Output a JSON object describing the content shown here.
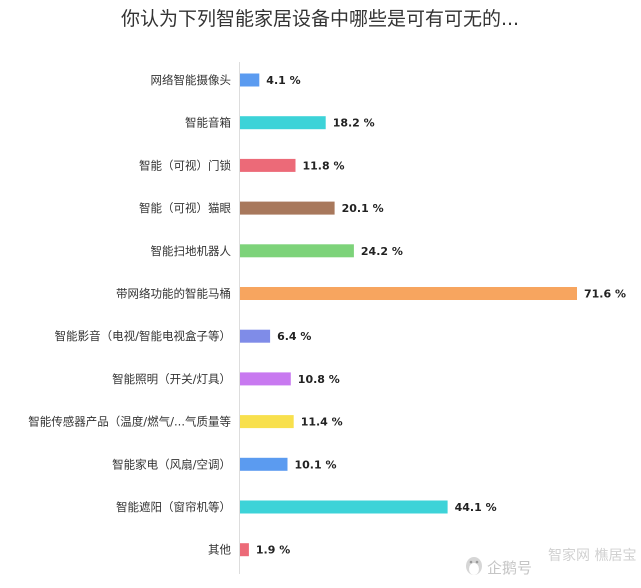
{
  "chart_data": {
    "type": "bar",
    "orientation": "horizontal",
    "title": "你认为下列智能家居设备中哪些是可有可无的...",
    "categories": [
      "网络智能摄像头",
      "智能音箱",
      "智能（可视）门锁",
      "智能（可视）猫眼",
      "智能扫地机器人",
      "带网络功能的智能马桶",
      "智能影音（电视/智能电视盒子等）",
      "智能照明（开关/灯具）",
      "智能传感器产品（温度/燃气/...气质量等",
      "智能家电（风扇/空调）",
      "智能遮阳（窗帘机等）",
      "其他"
    ],
    "values": [
      4.1,
      18.2,
      11.8,
      20.1,
      24.2,
      71.6,
      6.4,
      10.8,
      11.4,
      10.1,
      44.1,
      1.9
    ],
    "value_labels": [
      "4.1 %",
      "18.2 %",
      "11.8 %",
      "20.1 %",
      "24.2 %",
      "71.6 %",
      "6.4 %",
      "10.8 %",
      "11.4 %",
      "10.1 %",
      "44.1 %",
      "1.9 %"
    ],
    "colors": [
      "#5b9bf0",
      "#3dd3d8",
      "#ec6a78",
      "#a8785c",
      "#7dd37a",
      "#f7a55f",
      "#7f8ce8",
      "#c879f0",
      "#f8e04d",
      "#5b9bf0",
      "#3dd3d8",
      "#ec6a78"
    ],
    "xlim": [
      0,
      71.6
    ],
    "grid": false,
    "legend": "none"
  },
  "watermark": {
    "source_text": "企鹅号",
    "brand_text": "智家网 樵居宝"
  }
}
